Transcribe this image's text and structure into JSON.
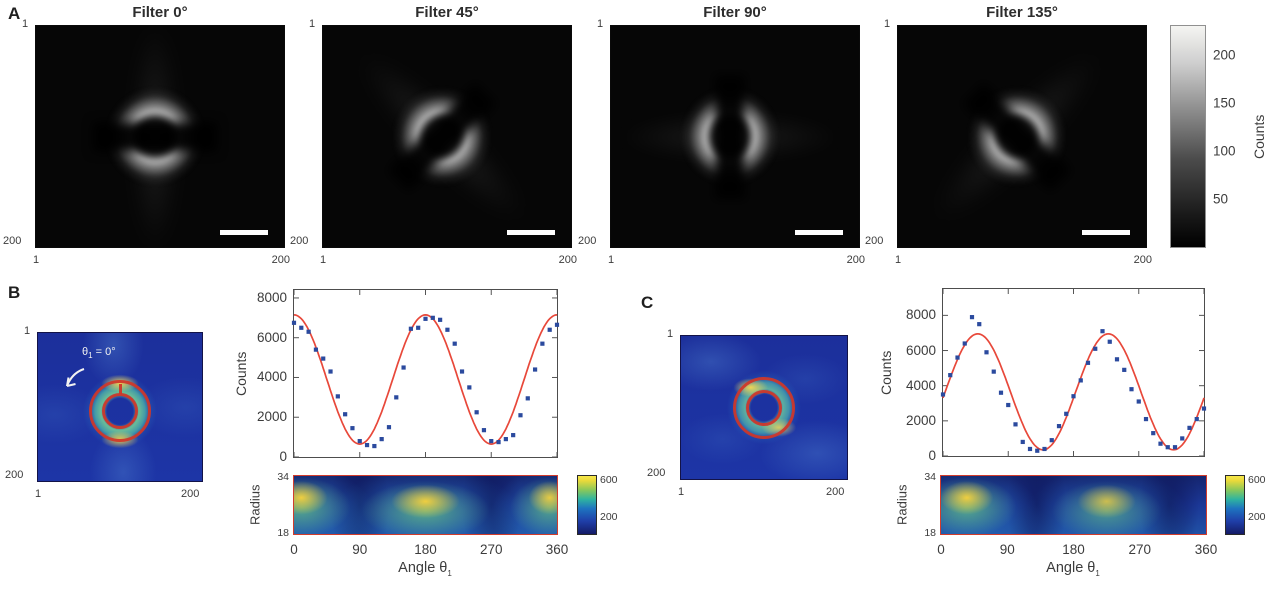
{
  "colors": {
    "fit_red": "#e8483a",
    "marker_blue": "#2b4a9e",
    "roi_circle_red": "#d03628",
    "text_dark": "#3c3c3c"
  },
  "panel_a": {
    "label": "A",
    "axis_ticks": {
      "row_start": "1",
      "row_end": "200",
      "col_start": "1",
      "col_end": "200"
    },
    "images": [
      {
        "title": "Filter 0°",
        "lobes": "top-bottom",
        "gap_rotation_deg": 0
      },
      {
        "title": "Filter 45°",
        "lobes": "topleft-bottomright",
        "gap_rotation_deg": -45
      },
      {
        "title": "Filter 90°",
        "lobes": "left-right",
        "gap_rotation_deg": 90
      },
      {
        "title": "Filter 135°",
        "lobes": "topright-bottomleft",
        "gap_rotation_deg": 45
      }
    ],
    "colorbar": {
      "label": "Counts",
      "ticks": [
        "200",
        "150",
        "100",
        "50"
      ],
      "range": [
        0,
        230
      ]
    }
  },
  "panel_b": {
    "label": "B",
    "image": {
      "axis_ticks": {
        "row_start": "1",
        "row_end": "200",
        "col_start": "1",
        "col_end": "200"
      },
      "annotation": {
        "prefix": "θ",
        "sub": "1",
        "suffix": " = 0°"
      }
    },
    "strip_xlabel": {
      "prefix": "Angle θ",
      "sub": "1"
    }
  },
  "panel_c": {
    "label": "C",
    "image": {
      "axis_ticks": {
        "row_start": "1",
        "row_end": "200",
        "col_start": "1",
        "col_end": "200"
      }
    },
    "strip_xlabel": {
      "prefix": "Angle θ",
      "sub": "1"
    }
  },
  "chart_data": [
    {
      "id": "b_counts_vs_angle",
      "panel": "B",
      "type": "scatter",
      "xlabel": "Angle θ1",
      "ylabel": "Counts",
      "xlim": [
        0,
        360
      ],
      "ylim": [
        0,
        8400
      ],
      "x_ticks": [
        0,
        90,
        180,
        270,
        360
      ],
      "y_ticks": [
        0,
        2000,
        4000,
        6000,
        8000
      ],
      "x": [
        0,
        10,
        20,
        30,
        40,
        50,
        60,
        70,
        80,
        90,
        100,
        110,
        120,
        130,
        140,
        150,
        160,
        170,
        180,
        190,
        200,
        210,
        220,
        230,
        240,
        250,
        260,
        270,
        280,
        290,
        300,
        310,
        320,
        330,
        340,
        350,
        360
      ],
      "y": [
        6750,
        6500,
        6300,
        5400,
        4950,
        4300,
        3050,
        2150,
        1450,
        800,
        600,
        550,
        900,
        1500,
        3000,
        4500,
        6450,
        6500,
        6950,
        7000,
        6900,
        6400,
        5700,
        4300,
        3500,
        2250,
        1350,
        800,
        750,
        900,
        1100,
        2100,
        2950,
        4400,
        5700,
        6400,
        6650
      ],
      "fit": {
        "type": "sinusoid",
        "offset": 3900,
        "amplitude": 3250,
        "period_deg": 180,
        "peak_deg": 0
      }
    },
    {
      "id": "b_radius_vs_angle_heatmap",
      "panel": "B",
      "type": "heatmap",
      "xlabel": "Angle θ1",
      "ylabel": "Radius",
      "xlim": [
        0,
        360
      ],
      "ylim": [
        18,
        34
      ],
      "x_ticks": [
        0,
        90,
        180,
        270,
        360
      ],
      "y_ticks": [
        34,
        18
      ],
      "colorbar": {
        "ticks": [
          600,
          200
        ],
        "range": [
          0,
          650
        ]
      },
      "hotspots": [
        {
          "angle_deg": 10,
          "radius": 28,
          "spread_deg": 50,
          "strength": 1
        },
        {
          "angle_deg": 180,
          "radius": 27,
          "spread_deg": 65,
          "strength": 1
        },
        {
          "angle_deg": 350,
          "radius": 28,
          "spread_deg": 40,
          "strength": 0.95
        }
      ],
      "cold_spots": [
        {
          "angle_deg": 90
        },
        {
          "angle_deg": 270
        }
      ]
    },
    {
      "id": "c_counts_vs_angle",
      "panel": "C",
      "type": "scatter",
      "xlabel": "Angle θ1",
      "ylabel": "Counts",
      "xlim": [
        0,
        360
      ],
      "ylim": [
        0,
        9500
      ],
      "x_ticks": [
        0,
        90,
        180,
        270,
        360
      ],
      "y_ticks": [
        0,
        2000,
        4000,
        6000,
        8000
      ],
      "x": [
        0,
        10,
        20,
        30,
        40,
        50,
        60,
        70,
        80,
        90,
        100,
        110,
        120,
        130,
        140,
        150,
        160,
        170,
        180,
        190,
        200,
        210,
        220,
        230,
        240,
        250,
        260,
        270,
        280,
        290,
        300,
        310,
        320,
        330,
        340,
        350,
        360
      ],
      "y": [
        3500,
        4600,
        5600,
        6400,
        7900,
        7500,
        5900,
        4800,
        3600,
        2900,
        1800,
        800,
        400,
        300,
        400,
        900,
        1700,
        2400,
        3400,
        4300,
        5300,
        6100,
        7100,
        6500,
        5500,
        4900,
        3800,
        3100,
        2100,
        1300,
        700,
        500,
        500,
        1000,
        1600,
        2100,
        2700
      ],
      "fit": {
        "type": "sinusoid",
        "offset": 3650,
        "amplitude": 3300,
        "period_deg": 180,
        "peak_deg": 48
      }
    },
    {
      "id": "c_radius_vs_angle_heatmap",
      "panel": "C",
      "type": "heatmap",
      "xlabel": "Angle θ1",
      "ylabel": "Radius",
      "xlim": [
        0,
        360
      ],
      "ylim": [
        18,
        34
      ],
      "x_ticks": [
        0,
        90,
        180,
        270,
        360
      ],
      "y_ticks": [
        34,
        18
      ],
      "colorbar": {
        "ticks": [
          600,
          200
        ],
        "range": [
          0,
          650
        ]
      },
      "hotspots": [
        {
          "angle_deg": 35,
          "radius": 28,
          "spread_deg": 50,
          "strength": 1
        },
        {
          "angle_deg": 225,
          "radius": 27,
          "spread_deg": 55,
          "strength": 0.8
        }
      ],
      "cold_spots": [
        {
          "angle_deg": 130
        },
        {
          "angle_deg": 310
        }
      ]
    }
  ]
}
